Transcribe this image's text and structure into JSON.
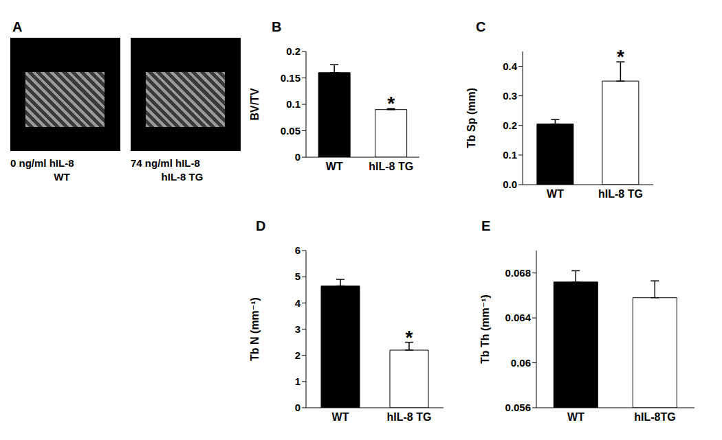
{
  "chart_data": [
    {
      "type": "image",
      "title": "A",
      "captions": [
        [
          "0 ng/ml hIL-8",
          "WT"
        ],
        [
          "74 ng/ml hIL-8",
          "hIL-8 TG"
        ]
      ]
    },
    {
      "type": "bar",
      "title": "B",
      "categories": [
        "WT",
        "hIL-8 TG"
      ],
      "values": [
        0.16,
        0.09
      ],
      "errors": [
        0.015,
        0.002
      ],
      "colors": [
        "#000000",
        "#ffffff"
      ],
      "y_label": "BV/TV",
      "ylim": [
        0,
        0.2
      ],
      "yticks": [
        0,
        0.05,
        0.1,
        0.15,
        0.2
      ],
      "annotations": [
        {
          "category": "hIL-8 TG",
          "text": "*"
        }
      ]
    },
    {
      "type": "bar",
      "title": "C",
      "categories": [
        "WT",
        "hIL-8 TG"
      ],
      "values": [
        0.205,
        0.35
      ],
      "errors": [
        0.015,
        0.065
      ],
      "colors": [
        "#000000",
        "#ffffff"
      ],
      "y_label": "Tb Sp (mm)",
      "ylim": [
        0,
        0.45
      ],
      "yticks": [
        {
          "value": 0,
          "label": "0.0"
        },
        0.1,
        0.2,
        0.3,
        0.4
      ],
      "annotations": [
        {
          "category": "hIL-8 TG",
          "text": "*"
        }
      ]
    },
    {
      "type": "bar",
      "title": "D",
      "categories": [
        "WT",
        "hIL-8 TG"
      ],
      "values": [
        4.65,
        2.2
      ],
      "errors": [
        0.25,
        0.3
      ],
      "colors": [
        "#000000",
        "#ffffff"
      ],
      "y_label": "Tb N (mm⁻¹)",
      "ylim": [
        0,
        6
      ],
      "yticks": [
        0,
        1,
        2,
        3,
        4,
        5,
        6
      ],
      "annotations": [
        {
          "category": "hIL-8 TG",
          "text": "*"
        }
      ]
    },
    {
      "type": "bar",
      "title": "E",
      "categories": [
        "WT",
        "hIL-8TG"
      ],
      "values": [
        0.0672,
        0.0658
      ],
      "errors": [
        0.001,
        0.0015
      ],
      "colors": [
        "#000000",
        "#ffffff"
      ],
      "y_label": "Tb Th (mm⁻¹)",
      "ylim": [
        0.056,
        0.07
      ],
      "yticks": [
        0.056,
        0.06,
        0.064,
        0.068
      ],
      "annotations": []
    }
  ]
}
